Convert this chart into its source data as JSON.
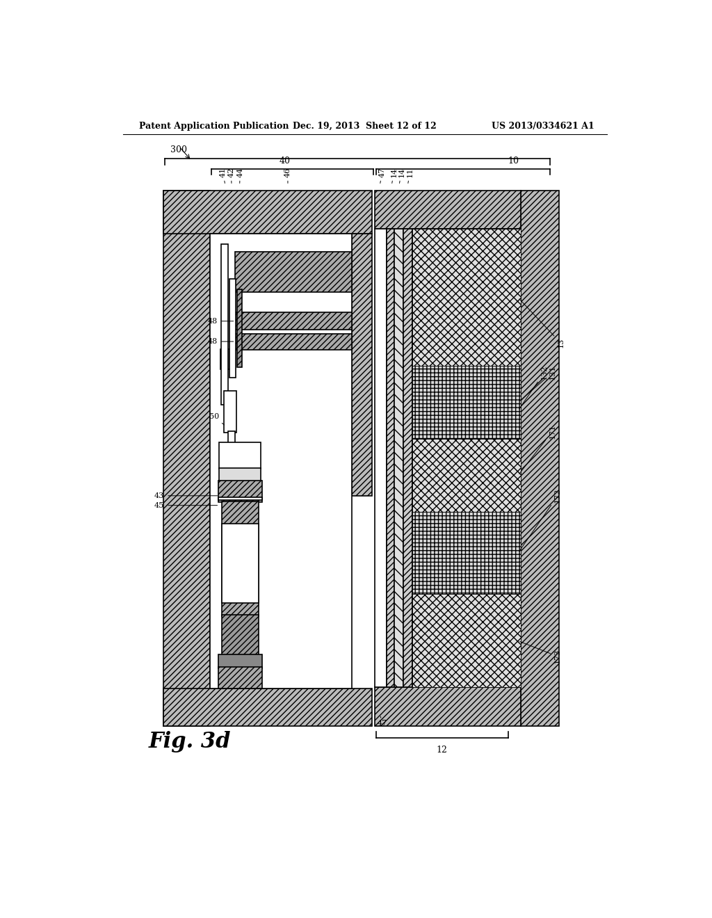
{
  "bg_color": "#ffffff",
  "header_left": "Patent Application Publication",
  "header_mid": "Dec. 19, 2013  Sheet 12 of 12",
  "header_right": "US 2013/0334621 A1",
  "fig_label": "Fig. 3d"
}
